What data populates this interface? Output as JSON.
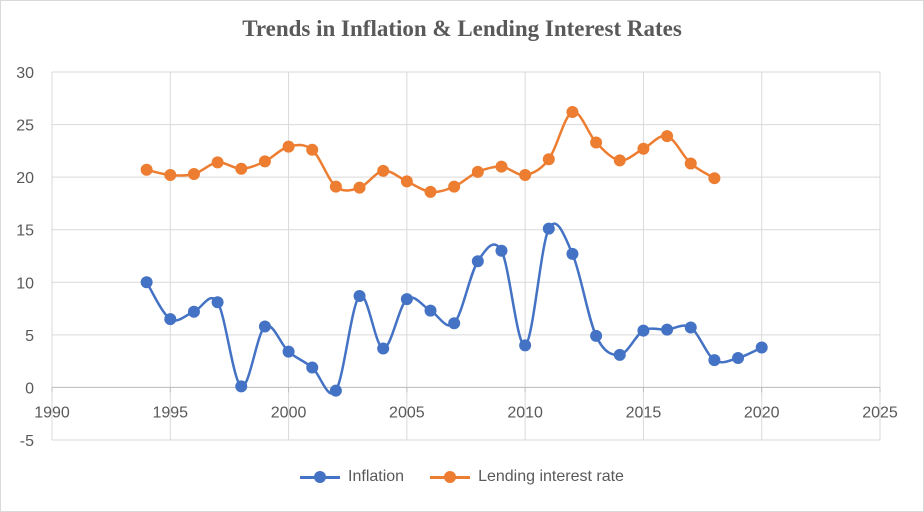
{
  "chart_data": {
    "type": "scatter",
    "title": "Trends in Inflation & Lending Interest Rates",
    "xlim": [
      1990,
      2025
    ],
    "ylim": [
      -5,
      30
    ],
    "xticks": [
      1990,
      1995,
      2000,
      2005,
      2010,
      2015,
      2020,
      2025
    ],
    "yticks": [
      -5,
      0,
      5,
      10,
      15,
      20,
      25,
      30
    ],
    "grid": true,
    "smooth_lines": true,
    "legend_position": "bottom",
    "series": [
      {
        "name": "Inflation",
        "color": "#4472c4",
        "x": [
          1994,
          1995,
          1996,
          1997,
          1998,
          1999,
          2000,
          2001,
          2002,
          2003,
          2004,
          2005,
          2006,
          2007,
          2008,
          2009,
          2010,
          2011,
          2012,
          2013,
          2014,
          2015,
          2016,
          2017,
          2018,
          2019,
          2020
        ],
        "y": [
          10.0,
          6.5,
          7.2,
          8.1,
          0.1,
          5.8,
          3.4,
          1.9,
          -0.3,
          8.7,
          3.7,
          8.4,
          7.3,
          6.1,
          12.0,
          13.0,
          4.0,
          15.1,
          12.7,
          4.9,
          3.1,
          5.4,
          5.5,
          5.7,
          2.6,
          2.8,
          3.8
        ]
      },
      {
        "name": "Lending interest rate",
        "color": "#ed7d31",
        "x": [
          1994,
          1995,
          1996,
          1997,
          1998,
          1999,
          2000,
          2001,
          2002,
          2003,
          2004,
          2005,
          2006,
          2007,
          2008,
          2009,
          2010,
          2011,
          2012,
          2013,
          2014,
          2015,
          2016,
          2017,
          2018
        ],
        "y": [
          20.7,
          20.2,
          20.3,
          21.4,
          20.8,
          21.5,
          22.9,
          22.6,
          19.1,
          19.0,
          20.6,
          19.6,
          18.6,
          19.1,
          20.5,
          21.0,
          20.2,
          21.7,
          26.2,
          23.3,
          21.6,
          22.7,
          23.9,
          21.3,
          19.9
        ]
      }
    ]
  }
}
